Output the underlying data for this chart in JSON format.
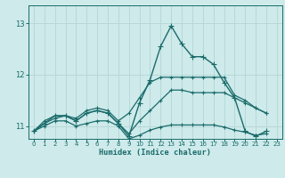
{
  "title": "",
  "xlabel": "Humidex (Indice chaleur)",
  "xlim": [
    -0.5,
    23.5
  ],
  "ylim": [
    10.75,
    13.35
  ],
  "yticks": [
    11,
    12,
    13
  ],
  "xticks": [
    0,
    1,
    2,
    3,
    4,
    5,
    6,
    7,
    8,
    9,
    10,
    11,
    12,
    13,
    14,
    15,
    16,
    17,
    18,
    19,
    20,
    21,
    22,
    23
  ],
  "background_color": "#ceeaea",
  "grid_color": "#b8d8d8",
  "line_color": "#1a6b6b",
  "y_main": [
    10.9,
    11.05,
    11.2,
    11.2,
    11.1,
    11.25,
    11.3,
    11.25,
    11.05,
    10.8,
    11.45,
    11.9,
    12.55,
    12.95,
    12.6,
    12.35,
    12.35,
    12.2,
    11.85,
    11.55,
    10.9,
    10.8,
    10.9,
    null
  ],
  "y_upper": [
    10.9,
    11.1,
    11.2,
    11.2,
    11.15,
    11.3,
    11.35,
    11.3,
    11.1,
    11.25,
    11.55,
    11.85,
    11.95,
    11.95,
    11.95,
    11.95,
    11.95,
    11.95,
    11.95,
    11.6,
    11.5,
    11.35,
    11.25,
    null
  ],
  "y_mid": [
    10.9,
    11.05,
    11.15,
    11.2,
    11.1,
    11.25,
    11.3,
    11.25,
    11.05,
    10.85,
    11.1,
    11.3,
    11.5,
    11.7,
    11.7,
    11.65,
    11.65,
    11.65,
    11.65,
    11.55,
    11.45,
    11.35,
    11.25,
    null
  ],
  "y_low": [
    10.9,
    11.0,
    11.1,
    11.1,
    11.0,
    11.05,
    11.1,
    11.1,
    11.0,
    10.75,
    10.82,
    10.92,
    10.98,
    11.02,
    11.02,
    11.02,
    11.02,
    11.02,
    10.98,
    10.92,
    10.88,
    10.82,
    10.85,
    null
  ]
}
